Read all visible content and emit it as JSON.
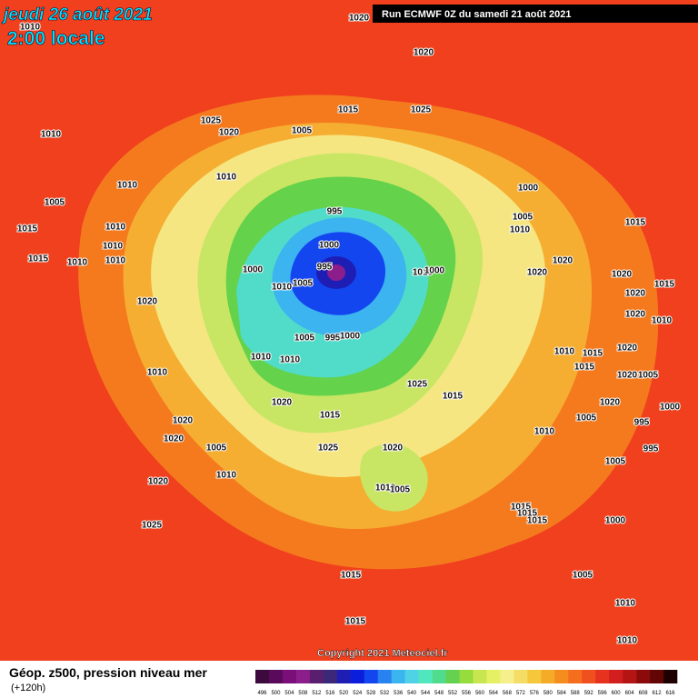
{
  "header": {
    "date": "jeudi 26 août 2021",
    "time": "2:00 locale",
    "run": "Run ECMWF 0Z du samedi 21 août 2021"
  },
  "copyright": "Copyright 2021 Meteociel.fr",
  "footer": {
    "title": "Géop. z500, pression niveau mer",
    "lead": "(+120h)"
  },
  "isobar_labels": [
    "1020",
    "1010",
    "1020",
    "1015",
    "1025",
    "1025",
    "1020",
    "1005",
    "1010",
    "1010",
    "1010",
    "1000",
    "1005",
    "995",
    "1005",
    "1010",
    "1015",
    "1010",
    "1015",
    "1010",
    "1000",
    "1015",
    "1010",
    "1010",
    "1020",
    "995",
    "1000",
    "1010",
    "1000",
    "1020",
    "1020",
    "1005",
    "1010",
    "1015",
    "1020",
    "1020",
    "1020",
    "995",
    "1000",
    "1005",
    "1010",
    "1010",
    "1015",
    "1020",
    "1010",
    "1010",
    "1015",
    "1010",
    "1025",
    "1015",
    "1020",
    "1005",
    "1020",
    "1015",
    "1020",
    "1000",
    "1005",
    "995",
    "1020",
    "1010",
    "1020",
    "1005",
    "1025",
    "1020",
    "995",
    "1010",
    "1020",
    "1005",
    "1010",
    "1005",
    "1015",
    "1015",
    "1015",
    "1000",
    "1025",
    "1005",
    "1015",
    "1010",
    "1015",
    "1010"
  ],
  "colorbar": {
    "labels": [
      496,
      500,
      504,
      508,
      512,
      516,
      520,
      524,
      528,
      532,
      536,
      540,
      544,
      548,
      552,
      556,
      560,
      564,
      568,
      572,
      576,
      580,
      584,
      588,
      592,
      596,
      600,
      604,
      608,
      612,
      616
    ],
    "colors": [
      "#3c0a3c",
      "#5a0a5a",
      "#7a0f7a",
      "#8c1e8c",
      "#5a1e6e",
      "#3c2878",
      "#1e1eb4",
      "#0a1edc",
      "#1446f0",
      "#2882f0",
      "#3cb4f0",
      "#50d2e6",
      "#50e6be",
      "#50dc8c",
      "#64d250",
      "#96dc3c",
      "#c8e650",
      "#e6f064",
      "#f5f08c",
      "#f5dc64",
      "#f5c83c",
      "#f5aa28",
      "#f58c1e",
      "#f56e1e",
      "#f0501e",
      "#e6321e",
      "#d21e1e",
      "#b41414",
      "#8c0a0a",
      "#640505",
      "#1e0000"
    ]
  }
}
